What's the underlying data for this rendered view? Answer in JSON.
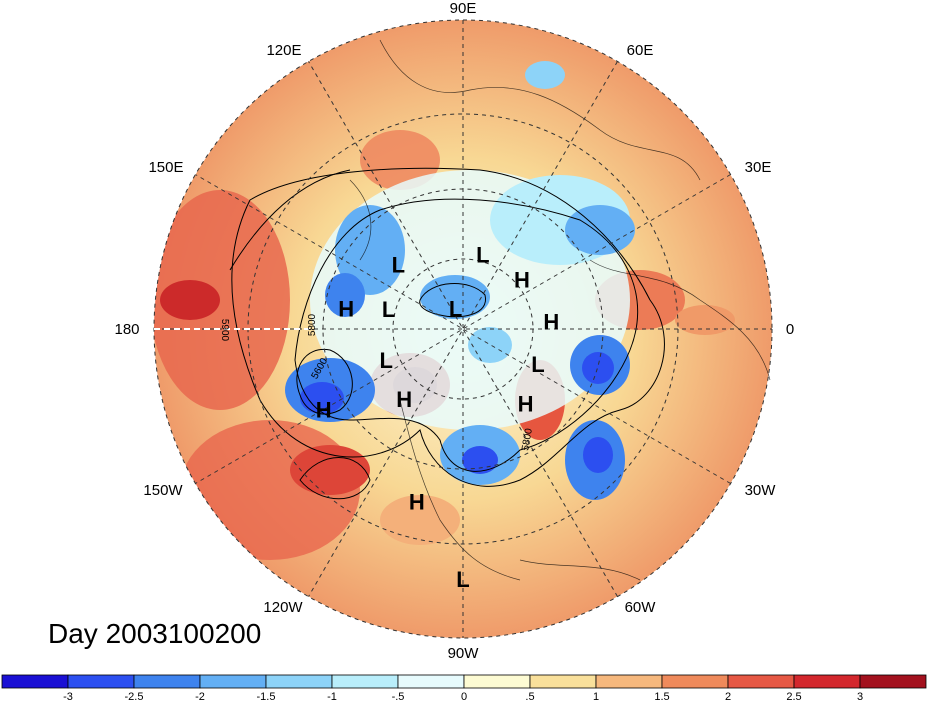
{
  "map": {
    "longitude_labels": [
      "90E",
      "60E",
      "30E",
      "0",
      "30W",
      "60W",
      "90W",
      "120W",
      "150W",
      "180",
      "150E",
      "120E"
    ],
    "pressure_centers": [
      {
        "type": "L",
        "lat": 62,
        "lon": 75
      },
      {
        "type": "H",
        "lat": 62,
        "lon": 40
      },
      {
        "type": "L",
        "lat": 57,
        "lon": 135
      },
      {
        "type": "L",
        "lat": 62,
        "lon": 165
      },
      {
        "type": "L",
        "lat": 82,
        "lon": 110
      },
      {
        "type": "H",
        "lat": 48,
        "lon": 170
      },
      {
        "type": "H",
        "lat": 58,
        "lon": 5
      },
      {
        "type": "L",
        "lat": 60,
        "lon": -158
      },
      {
        "type": "H",
        "lat": 57,
        "lon": -130
      },
      {
        "type": "L",
        "lat": 60,
        "lon": -25
      },
      {
        "type": "H",
        "lat": 55,
        "lon": -50
      },
      {
        "type": "H",
        "lat": 35,
        "lon": -150
      },
      {
        "type": "H",
        "lat": 30,
        "lon": -105
      },
      {
        "type": "L",
        "lat": 12,
        "lon": -90
      }
    ],
    "contour_labels": [
      "5900",
      "5800",
      "5600",
      "5800"
    ],
    "colors": {
      "strong_negative": "#1c2fd9",
      "negative": "#4a9ff0",
      "weak_negative": "#b8ecfb",
      "neutral": "#fdfbdf",
      "weak_positive": "#f8d88a",
      "positive": "#f09a5e",
      "strong_positive": "#d9372f"
    }
  },
  "day_label": "Day 2003100200",
  "colorbar": {
    "colors": [
      "#1a10d4",
      "#2c4ff0",
      "#3e83ee",
      "#63aff4",
      "#8dd3f8",
      "#b9eefb",
      "#e7fbfd",
      "#fdfbd3",
      "#f9e09b",
      "#f6b87d",
      "#ef8a5b",
      "#e65844",
      "#d3272d",
      "#a3111e"
    ],
    "ticks": [
      "-3",
      "-2.5",
      "-2",
      "-1.5",
      "-1",
      "-.5",
      "0",
      ".5",
      "1",
      "1.5",
      "2",
      "2.5",
      "3"
    ]
  }
}
